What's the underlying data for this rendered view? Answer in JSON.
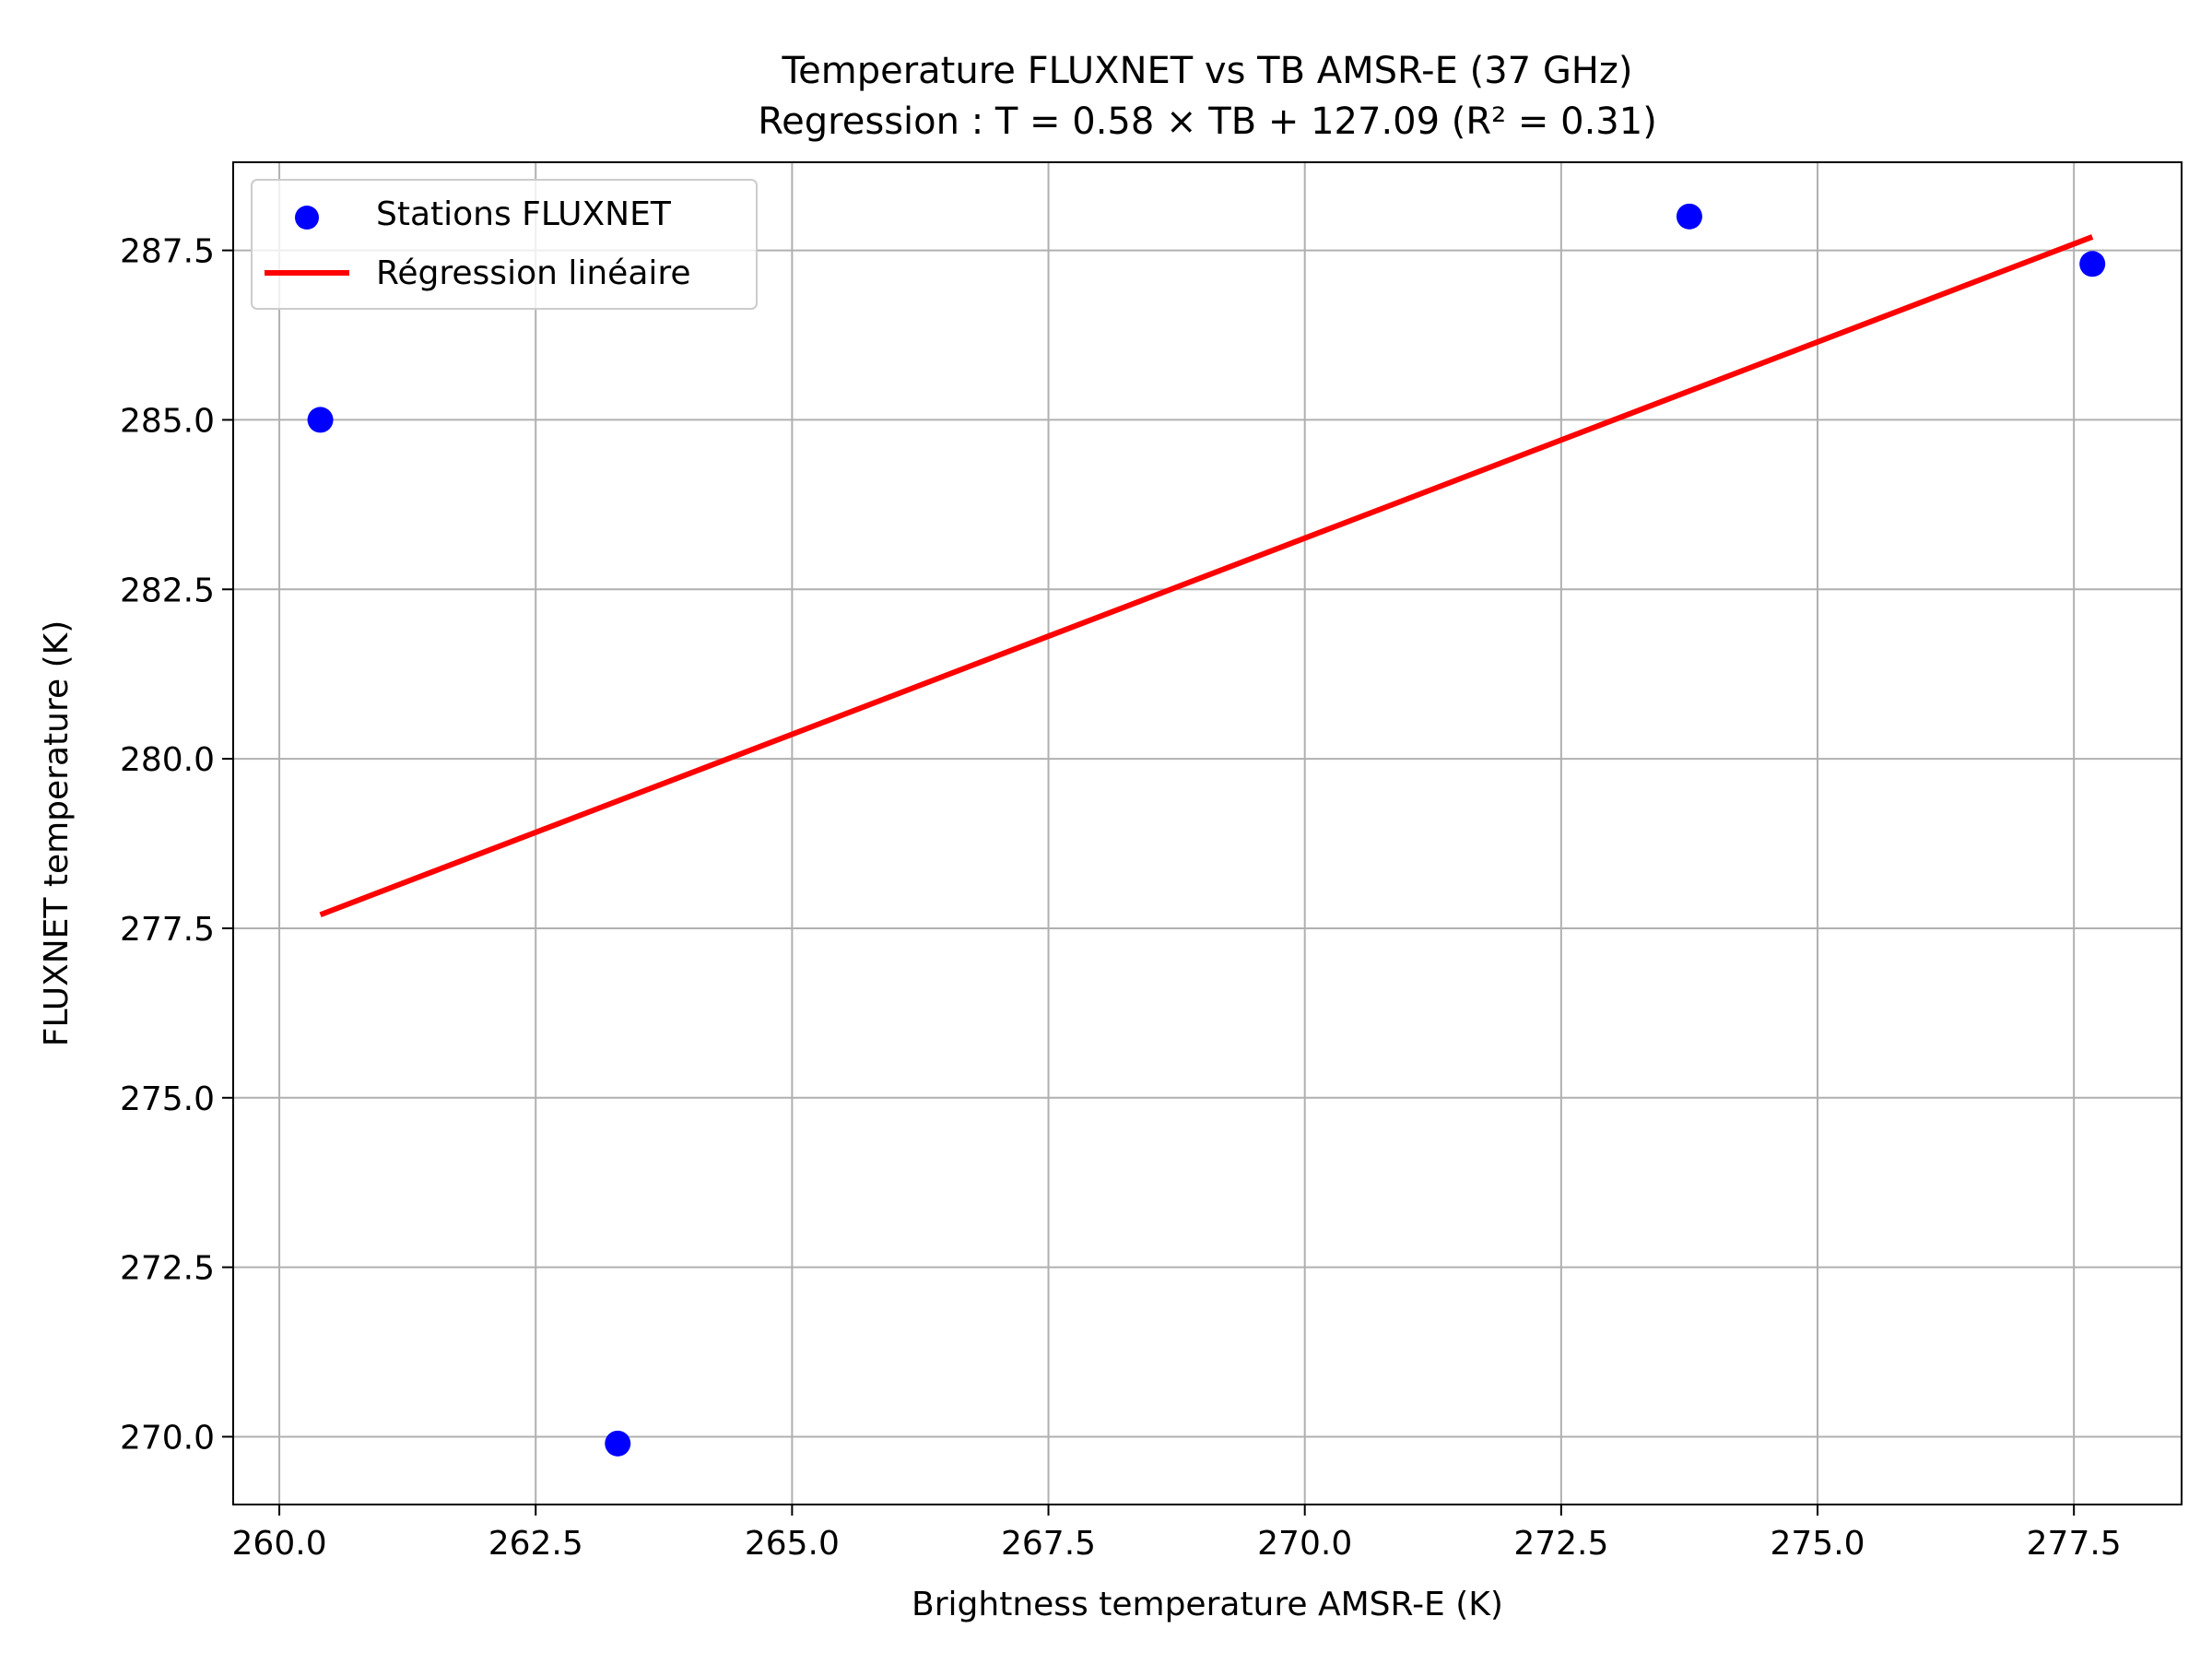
{
  "chart_data": {
    "type": "scatter",
    "title": "Temperature FLUXNET vs TB AMSR-E (37 GHz)",
    "subtitle": "Regression : T = 0.58 × TB + 127.09 (R² = 0.31)",
    "xlabel": "Brightness temperature AMSR-E (K)",
    "ylabel": "FLUXNET temperature (K)",
    "xlim": [
      259.55,
      278.55
    ],
    "ylim": [
      269.0,
      288.8
    ],
    "x_ticks": [
      260.0,
      262.5,
      265.0,
      267.5,
      270.0,
      272.5,
      275.0,
      277.5
    ],
    "x_tick_labels": [
      "260.0",
      "262.5",
      "265.0",
      "267.5",
      "270.0",
      "272.5",
      "275.0",
      "277.5"
    ],
    "y_ticks": [
      270.0,
      272.5,
      275.0,
      277.5,
      280.0,
      282.5,
      285.0,
      287.5
    ],
    "y_tick_labels": [
      "270.0",
      "272.5",
      "275.0",
      "277.5",
      "280.0",
      "282.5",
      "285.0",
      "287.5"
    ],
    "grid": true,
    "legend_position": "top-left",
    "series": [
      {
        "name": "Stations FLUXNET",
        "kind": "scatter",
        "color": "#0000ff",
        "x": [
          260.4,
          263.3,
          273.75,
          277.68
        ],
        "y": [
          285.0,
          269.9,
          288.0,
          287.3
        ]
      },
      {
        "name": "Régression linéaire",
        "kind": "line",
        "color": "#ff0000",
        "x": [
          260.4,
          277.68
        ],
        "y": [
          277.7,
          287.7
        ]
      }
    ]
  }
}
